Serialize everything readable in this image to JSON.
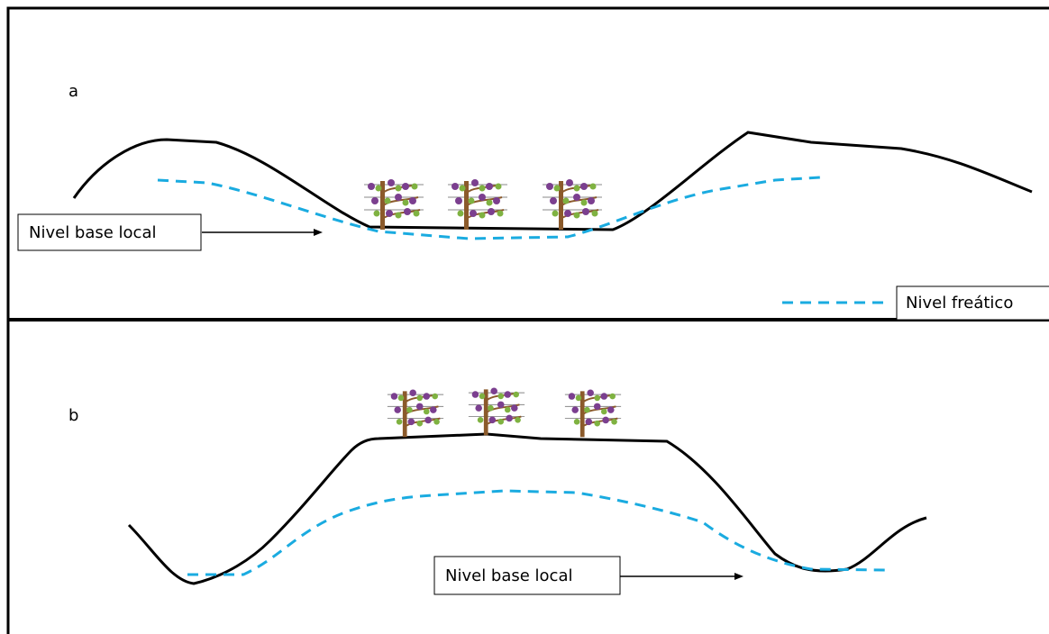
{
  "panels": [
    {
      "label": "a",
      "base_label": "Nivel base local"
    },
    {
      "label": "b",
      "base_label": "Nivel base local"
    }
  ],
  "legend": {
    "label": "Nivel freático"
  }
}
